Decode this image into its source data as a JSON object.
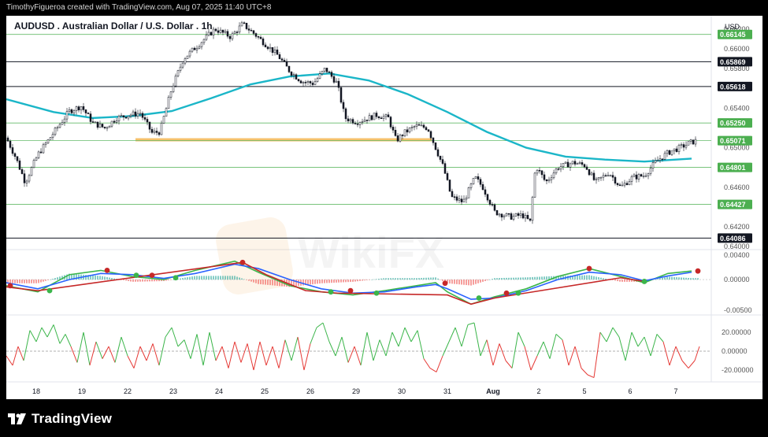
{
  "header": {
    "attribution": "TimothyFigueroa created with TradingView.com, Aug 07, 2025 11:40 UTC+8"
  },
  "brand": {
    "name": "TradingView",
    "icon": "tradingview-logo-icon"
  },
  "watermark": "WikiFX",
  "chart_data": [
    {
      "type": "line",
      "subtype": "candlestick",
      "title": "AUDUSD . Australian Dollar / U.S. Dollar . 1h",
      "currency_label": "USD",
      "x_tick_labels": [
        "18",
        "19",
        "22",
        "23",
        "24",
        "25",
        "26",
        "29",
        "30",
        "31",
        "Aug",
        "2",
        "5",
        "6",
        "7"
      ],
      "y_tick_labels": [
        "0.66200",
        "0.66000",
        "0.65800",
        "0.65400",
        "0.65000",
        "0.64600",
        "0.64200",
        "0.64000"
      ],
      "ylim": [
        0.6397,
        0.6627
      ],
      "horizontal_levels": [
        {
          "value": "0.66145",
          "style": "green"
        },
        {
          "value": "0.65869",
          "style": "black"
        },
        {
          "value": "0.65618",
          "style": "black"
        },
        {
          "value": "0.65250",
          "style": "green"
        },
        {
          "value": "0.65071",
          "style": "green"
        },
        {
          "value": "0.64801",
          "style": "green"
        },
        {
          "value": "0.64427",
          "style": "green"
        },
        {
          "value": "0.64086",
          "style": "black"
        }
      ],
      "support_zone": {
        "value": 0.6508,
        "from": "22",
        "to": "30",
        "color": "#f5c16c"
      },
      "ma_line": {
        "color": "#1bb6c8",
        "points": [
          [
            0,
            0.6549
          ],
          [
            60,
            0.6536
          ],
          [
            110,
            0.653
          ],
          [
            160,
            0.6532
          ],
          [
            210,
            0.6537
          ],
          [
            260,
            0.655
          ],
          [
            310,
            0.6564
          ],
          [
            360,
            0.6572
          ],
          [
            410,
            0.6575
          ],
          [
            460,
            0.6568
          ],
          [
            510,
            0.6554
          ],
          [
            560,
            0.6536
          ],
          [
            610,
            0.6516
          ],
          [
            660,
            0.65
          ],
          [
            710,
            0.6491
          ],
          [
            760,
            0.6488
          ],
          [
            810,
            0.6486
          ],
          [
            870,
            0.6489
          ]
        ]
      },
      "price_path": [
        [
          0,
          0.651
        ],
        [
          12,
          0.649
        ],
        [
          24,
          0.6465
        ],
        [
          40,
          0.6493
        ],
        [
          60,
          0.6515
        ],
        [
          80,
          0.6537
        ],
        [
          95,
          0.6542
        ],
        [
          110,
          0.6525
        ],
        [
          125,
          0.652
        ],
        [
          140,
          0.653
        ],
        [
          155,
          0.6533
        ],
        [
          170,
          0.6535
        ],
        [
          185,
          0.6515
        ],
        [
          195,
          0.6516
        ],
        [
          210,
          0.656
        ],
        [
          225,
          0.659
        ],
        [
          245,
          0.6605
        ],
        [
          265,
          0.662
        ],
        [
          285,
          0.6612
        ],
        [
          300,
          0.6625
        ],
        [
          315,
          0.6615
        ],
        [
          330,
          0.6604
        ],
        [
          345,
          0.6593
        ],
        [
          360,
          0.6577
        ],
        [
          375,
          0.6567
        ],
        [
          390,
          0.6565
        ],
        [
          405,
          0.658
        ],
        [
          420,
          0.6565
        ],
        [
          430,
          0.653
        ],
        [
          445,
          0.6526
        ],
        [
          460,
          0.653
        ],
        [
          470,
          0.6533
        ],
        [
          485,
          0.653
        ],
        [
          495,
          0.6507
        ],
        [
          505,
          0.6515
        ],
        [
          520,
          0.6522
        ],
        [
          535,
          0.652
        ],
        [
          545,
          0.65
        ],
        [
          555,
          0.648
        ],
        [
          565,
          0.645
        ],
        [
          580,
          0.6445
        ],
        [
          595,
          0.647
        ],
        [
          605,
          0.646
        ],
        [
          620,
          0.6435
        ],
        [
          640,
          0.643
        ],
        [
          655,
          0.6432
        ],
        [
          665,
          0.6425
        ],
        [
          672,
          0.6482
        ],
        [
          685,
          0.6465
        ],
        [
          700,
          0.648
        ],
        [
          720,
          0.6485
        ],
        [
          735,
          0.6482
        ],
        [
          748,
          0.6465
        ],
        [
          765,
          0.6475
        ],
        [
          780,
          0.646
        ],
        [
          795,
          0.647
        ],
        [
          810,
          0.6472
        ],
        [
          825,
          0.6486
        ],
        [
          840,
          0.6495
        ],
        [
          855,
          0.65
        ],
        [
          868,
          0.6505
        ],
        [
          876,
          0.6507
        ]
      ],
      "price_label_colors": {
        "green": "#4caf50",
        "black": "#131722"
      }
    },
    {
      "type": "line",
      "subtype": "oscillator",
      "y_tick_labels": [
        "0.00400",
        "0.00000",
        "-0.00500"
      ],
      "ylim": [
        -0.0055,
        0.0045
      ],
      "series": [
        {
          "role": "fast",
          "color": "#3bb54a",
          "points": [
            [
              0,
              -0.001
            ],
            [
              40,
              -0.002
            ],
            [
              80,
              0.0008
            ],
            [
              120,
              0.0015
            ],
            [
              160,
              0.0005
            ],
            [
              200,
              0.0
            ],
            [
              240,
              0.0015
            ],
            [
              290,
              0.003
            ],
            [
              320,
              0.0012
            ],
            [
              360,
              -0.001
            ],
            [
              400,
              -0.002
            ],
            [
              440,
              -0.0025
            ],
            [
              480,
              -0.0018
            ],
            [
              520,
              -0.001
            ],
            [
              545,
              -0.0005
            ],
            [
              560,
              -0.002
            ],
            [
              590,
              -0.004
            ],
            [
              620,
              -0.0028
            ],
            [
              660,
              -0.0015
            ],
            [
              700,
              0.0005
            ],
            [
              740,
              0.0018
            ],
            [
              780,
              0.0005
            ],
            [
              810,
              -0.0005
            ],
            [
              840,
              0.001
            ],
            [
              870,
              0.0014
            ]
          ]
        },
        {
          "role": "slow",
          "color": "#2962ff",
          "points": [
            [
              0,
              -0.0005
            ],
            [
              40,
              -0.0015
            ],
            [
              80,
              0.0
            ],
            [
              120,
              0.001
            ],
            [
              160,
              0.0008
            ],
            [
              200,
              0.0002
            ],
            [
              240,
              0.001
            ],
            [
              290,
              0.0025
            ],
            [
              320,
              0.0018
            ],
            [
              360,
              0.0
            ],
            [
              400,
              -0.0015
            ],
            [
              440,
              -0.0022
            ],
            [
              480,
              -0.002
            ],
            [
              520,
              -0.0012
            ],
            [
              545,
              -0.0008
            ],
            [
              560,
              -0.0015
            ],
            [
              590,
              -0.0032
            ],
            [
              620,
              -0.003
            ],
            [
              660,
              -0.0018
            ],
            [
              700,
              0.0
            ],
            [
              740,
              0.0012
            ],
            [
              780,
              0.0008
            ],
            [
              810,
              -0.0002
            ],
            [
              840,
              0.0006
            ],
            [
              870,
              0.0012
            ]
          ]
        },
        {
          "role": "bear",
          "color": "#c62828",
          "points": [
            [
              0,
              -0.0012
            ],
            [
              40,
              -0.0018
            ],
            [
              300,
              0.0028
            ],
            [
              330,
              0.0008
            ],
            [
              380,
              -0.0018
            ],
            [
              420,
              -0.0022
            ],
            [
              560,
              -0.0025
            ],
            [
              590,
              -0.004
            ],
            [
              620,
              -0.003
            ],
            [
              780,
              0.0003
            ],
            [
              810,
              -0.0003
            ]
          ]
        }
      ],
      "cross_markers": [
        {
          "x": 5,
          "y": -0.001,
          "color": "#c62828"
        },
        {
          "x": 55,
          "y": -0.0018,
          "color": "#3bb54a"
        },
        {
          "x": 128,
          "y": 0.0015,
          "color": "#c62828"
        },
        {
          "x": 165,
          "y": 0.0007,
          "color": "#3bb54a"
        },
        {
          "x": 185,
          "y": 0.0007,
          "color": "#c62828"
        },
        {
          "x": 215,
          "y": 0.0003,
          "color": "#3bb54a"
        },
        {
          "x": 300,
          "y": 0.0028,
          "color": "#c62828"
        },
        {
          "x": 412,
          "y": -0.002,
          "color": "#3bb54a"
        },
        {
          "x": 437,
          "y": -0.0018,
          "color": "#c62828"
        },
        {
          "x": 470,
          "y": -0.0022,
          "color": "#3bb54a"
        },
        {
          "x": 557,
          "y": -0.0006,
          "color": "#c62828"
        },
        {
          "x": 600,
          "y": -0.003,
          "color": "#3bb54a"
        },
        {
          "x": 635,
          "y": -0.0022,
          "color": "#c62828"
        },
        {
          "x": 650,
          "y": -0.0022,
          "color": "#3bb54a"
        },
        {
          "x": 740,
          "y": 0.0018,
          "color": "#c62828"
        },
        {
          "x": 810,
          "y": -0.0003,
          "color": "#3bb54a"
        },
        {
          "x": 878,
          "y": 0.0014,
          "color": "#c62828"
        }
      ]
    },
    {
      "type": "line",
      "subtype": "momentum",
      "y_tick_labels": [
        "20.00000",
        "0.00000",
        "-20.00000"
      ],
      "ylim": [
        -30,
        35
      ],
      "series_colors": {
        "up": "#3bb54a",
        "down": "#e53935"
      },
      "points": [
        [
          0,
          -5
        ],
        [
          8,
          -15
        ],
        [
          15,
          5
        ],
        [
          22,
          -10
        ],
        [
          30,
          22
        ],
        [
          38,
          10
        ],
        [
          45,
          25
        ],
        [
          52,
          15
        ],
        [
          60,
          28
        ],
        [
          68,
          8
        ],
        [
          75,
          18
        ],
        [
          82,
          5
        ],
        [
          90,
          -12
        ],
        [
          98,
          20
        ],
        [
          106,
          -15
        ],
        [
          114,
          10
        ],
        [
          122,
          -8
        ],
        [
          130,
          5
        ],
        [
          138,
          -12
        ],
        [
          146,
          15
        ],
        [
          154,
          -5
        ],
        [
          162,
          -18
        ],
        [
          170,
          5
        ],
        [
          178,
          -10
        ],
        [
          186,
          8
        ],
        [
          194,
          -15
        ],
        [
          202,
          15
        ],
        [
          210,
          25
        ],
        [
          218,
          5
        ],
        [
          226,
          12
        ],
        [
          234,
          -8
        ],
        [
          242,
          18
        ],
        [
          250,
          -15
        ],
        [
          258,
          20
        ],
        [
          266,
          -10
        ],
        [
          274,
          5
        ],
        [
          282,
          -18
        ],
        [
          290,
          10
        ],
        [
          298,
          -12
        ],
        [
          306,
          8
        ],
        [
          314,
          -20
        ],
        [
          322,
          10
        ],
        [
          330,
          -15
        ],
        [
          338,
          5
        ],
        [
          346,
          -18
        ],
        [
          354,
          12
        ],
        [
          362,
          -10
        ],
        [
          370,
          15
        ],
        [
          378,
          -20
        ],
        [
          386,
          8
        ],
        [
          394,
          25
        ],
        [
          402,
          30
        ],
        [
          410,
          10
        ],
        [
          418,
          -5
        ],
        [
          426,
          15
        ],
        [
          434,
          -12
        ],
        [
          442,
          5
        ],
        [
          450,
          -15
        ],
        [
          458,
          20
        ],
        [
          466,
          -10
        ],
        [
          474,
          12
        ],
        [
          482,
          -5
        ],
        [
          490,
          20
        ],
        [
          498,
          5
        ],
        [
          506,
          25
        ],
        [
          514,
          10
        ],
        [
          522,
          22
        ],
        [
          530,
          -8
        ],
        [
          538,
          -18
        ],
        [
          546,
          -22
        ],
        [
          554,
          -5
        ],
        [
          562,
          10
        ],
        [
          570,
          25
        ],
        [
          578,
          5
        ],
        [
          586,
          28
        ],
        [
          594,
          30
        ],
        [
          602,
          -5
        ],
        [
          610,
          12
        ],
        [
          618,
          -15
        ],
        [
          626,
          8
        ],
        [
          634,
          -10
        ],
        [
          642,
          -18
        ],
        [
          650,
          20
        ],
        [
          658,
          5
        ],
        [
          666,
          -20
        ],
        [
          674,
          -5
        ],
        [
          682,
          10
        ],
        [
          690,
          -8
        ],
        [
          698,
          18
        ],
        [
          706,
          12
        ],
        [
          714,
          -15
        ],
        [
          722,
          5
        ],
        [
          730,
          -18
        ],
        [
          738,
          -25
        ],
        [
          746,
          -28
        ],
        [
          754,
          20
        ],
        [
          762,
          10
        ],
        [
          770,
          25
        ],
        [
          778,
          15
        ],
        [
          786,
          -10
        ],
        [
          794,
          20
        ],
        [
          802,
          5
        ],
        [
          810,
          15
        ],
        [
          818,
          -5
        ],
        [
          826,
          18
        ],
        [
          834,
          10
        ],
        [
          842,
          -15
        ],
        [
          850,
          5
        ],
        [
          858,
          -10
        ],
        [
          866,
          -18
        ],
        [
          874,
          -10
        ],
        [
          880,
          5
        ]
      ]
    }
  ],
  "timeline": [
    "18",
    "19",
    "22",
    "23",
    "24",
    "25",
    "26",
    "29",
    "30",
    "31",
    "Aug",
    "2",
    "5",
    "6",
    "7"
  ]
}
